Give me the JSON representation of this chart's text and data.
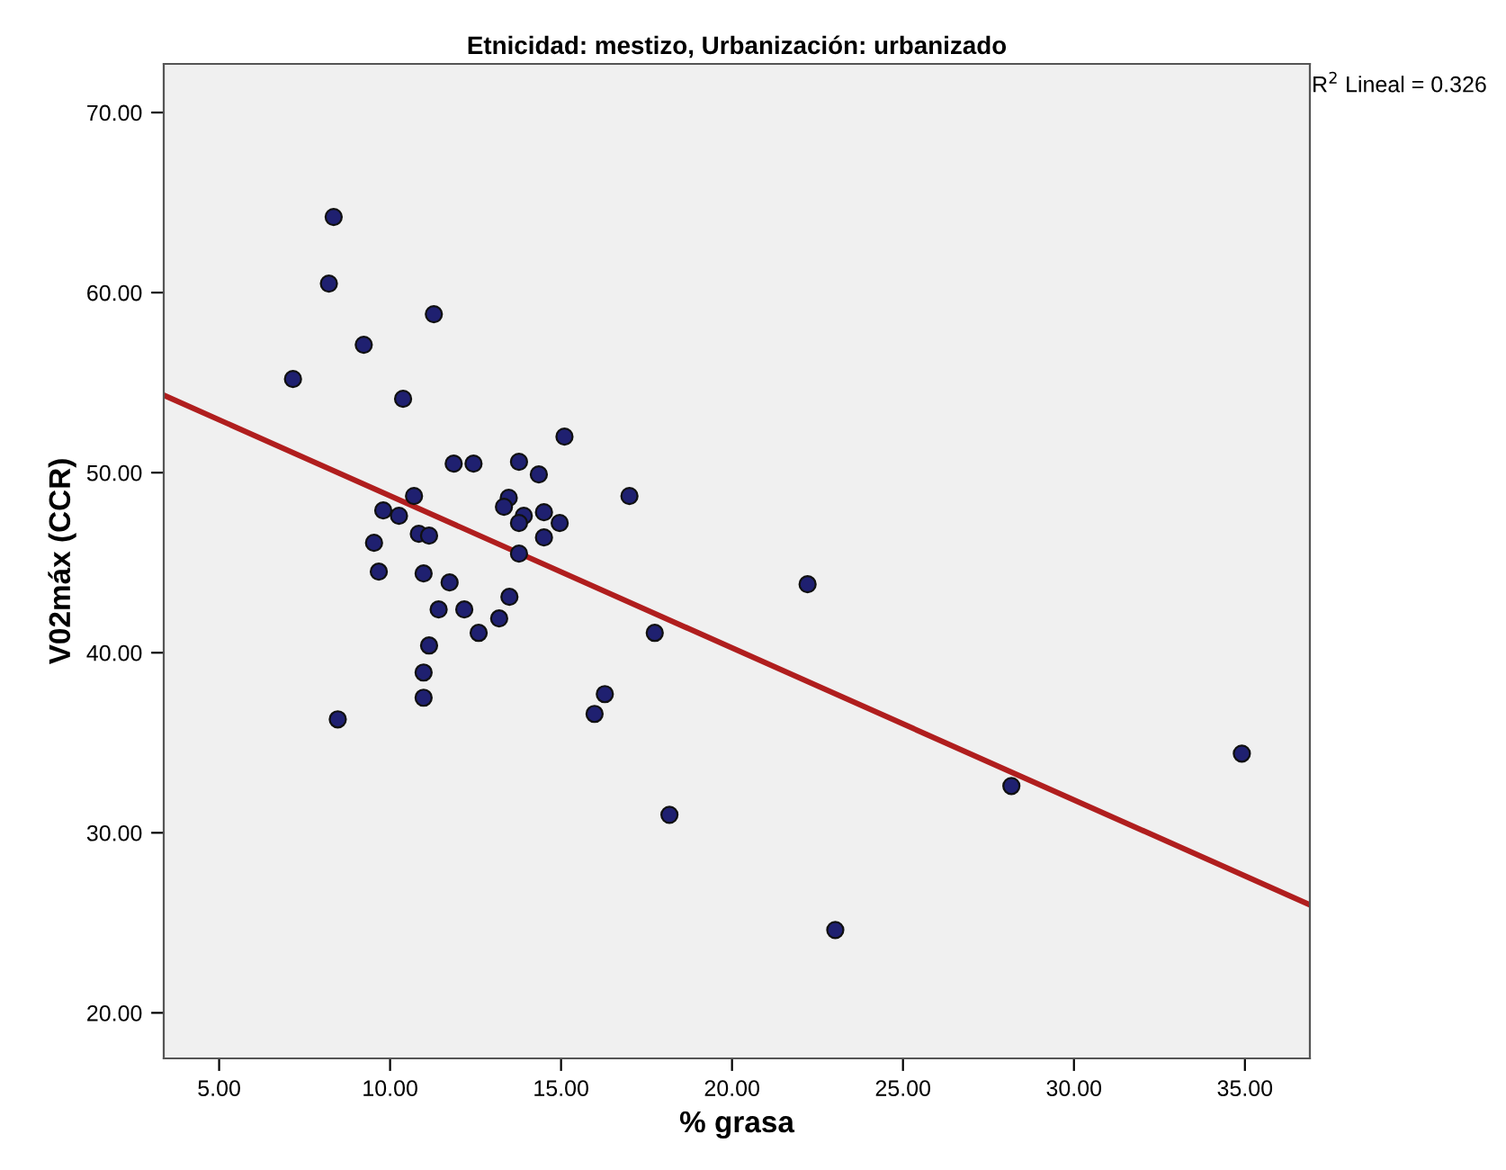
{
  "chart_data": {
    "type": "scatter",
    "title": "Etnicidad: mestizo, Urbanización: urbanizado",
    "xlabel": "% grasa",
    "ylabel": "V02máx (CCR)",
    "annotations": [
      "R$^{2}$ Lineal = 0.326"
    ],
    "xlim": [
      3.38,
      36.9
    ],
    "ylim": [
      17.47,
      72.7
    ],
    "xticks": [
      {
        "value": 5,
        "label": "5.00"
      },
      {
        "value": 10,
        "label": "10.00"
      },
      {
        "value": 15,
        "label": "15.00"
      },
      {
        "value": 20,
        "label": "20.00"
      },
      {
        "value": 25,
        "label": "25.00"
      },
      {
        "value": 30,
        "label": "30.00"
      },
      {
        "value": 35,
        "label": "35.00"
      }
    ],
    "yticks": [
      {
        "value": 20,
        "label": "20.00"
      },
      {
        "value": 30,
        "label": "30.00"
      },
      {
        "value": 40,
        "label": "40.00"
      },
      {
        "value": 50,
        "label": "50.00"
      },
      {
        "value": 60,
        "label": "60.00"
      },
      {
        "value": 70,
        "label": "70.00"
      }
    ],
    "grid": false,
    "legend": false,
    "marker": "circle",
    "series": [
      {
        "color": "#1f2070",
        "x": [
          8.35,
          8.21,
          11.28,
          9.23,
          7.16,
          10.38,
          15.1,
          11.86,
          12.44,
          13.77,
          14.35,
          10.7,
          17.0,
          9.8,
          10.26,
          13.47,
          13.33,
          13.91,
          13.77,
          14.5,
          14.96,
          14.5,
          10.84,
          11.14,
          9.53,
          13.77,
          9.67,
          10.98,
          11.74,
          13.49,
          11.42,
          12.17,
          13.19,
          12.59,
          11.14,
          10.98,
          10.98,
          8.47,
          17.74,
          16.28,
          15.98,
          22.21,
          18.17,
          23.02,
          28.17,
          34.91
        ],
        "values": [
          64.2,
          60.5,
          58.8,
          57.1,
          55.2,
          54.1,
          52.0,
          50.5,
          50.5,
          50.6,
          49.9,
          48.7,
          48.7,
          47.9,
          47.6,
          48.6,
          48.1,
          47.6,
          47.2,
          47.8,
          47.2,
          46.4,
          46.6,
          46.5,
          46.1,
          45.5,
          44.5,
          44.4,
          43.9,
          43.1,
          42.4,
          42.4,
          41.9,
          41.1,
          40.4,
          38.9,
          37.5,
          36.3,
          41.1,
          37.7,
          36.6,
          43.8,
          31.0,
          24.6,
          32.6,
          34.4
        ]
      },
      {
        "type": "line",
        "color": "#b01e1e",
        "marker": "none",
        "line_style": "solid",
        "x": [
          3.38,
          36.9
        ],
        "values": [
          54.3,
          26.0
        ]
      }
    ]
  }
}
